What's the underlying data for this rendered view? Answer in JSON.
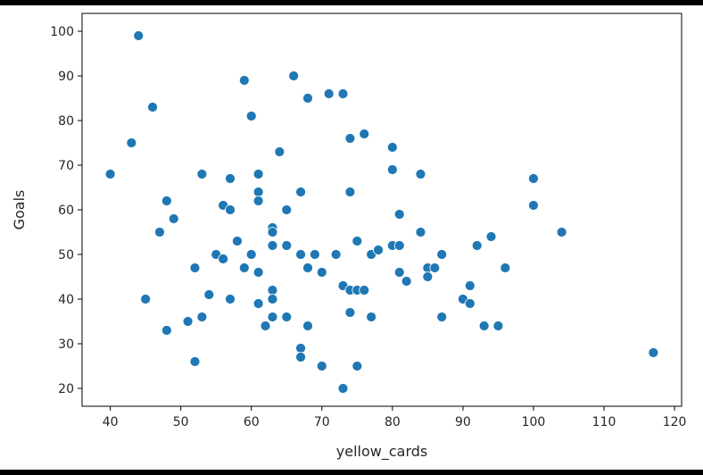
{
  "chart_data": {
    "type": "scatter",
    "xlabel": "yellow_cards",
    "ylabel": "Goals",
    "xlim": [
      36,
      121
    ],
    "ylim": [
      16,
      104
    ],
    "xticks": [
      40,
      50,
      60,
      70,
      80,
      90,
      100,
      110,
      120
    ],
    "yticks": [
      20,
      30,
      40,
      50,
      60,
      70,
      80,
      90,
      100
    ],
    "grid": false,
    "marker_color": "#1f77b4",
    "points": [
      {
        "x": 40,
        "y": 68
      },
      {
        "x": 43,
        "y": 75
      },
      {
        "x": 44,
        "y": 99
      },
      {
        "x": 45,
        "y": 40
      },
      {
        "x": 46,
        "y": 83
      },
      {
        "x": 47,
        "y": 55
      },
      {
        "x": 48,
        "y": 62
      },
      {
        "x": 48,
        "y": 33
      },
      {
        "x": 49,
        "y": 58
      },
      {
        "x": 51,
        "y": 35
      },
      {
        "x": 52,
        "y": 47
      },
      {
        "x": 52,
        "y": 26
      },
      {
        "x": 53,
        "y": 68
      },
      {
        "x": 53,
        "y": 36
      },
      {
        "x": 54,
        "y": 41
      },
      {
        "x": 55,
        "y": 50
      },
      {
        "x": 56,
        "y": 61
      },
      {
        "x": 56,
        "y": 49
      },
      {
        "x": 57,
        "y": 67
      },
      {
        "x": 57,
        "y": 60
      },
      {
        "x": 57,
        "y": 40
      },
      {
        "x": 58,
        "y": 53
      },
      {
        "x": 59,
        "y": 89
      },
      {
        "x": 59,
        "y": 47
      },
      {
        "x": 60,
        "y": 81
      },
      {
        "x": 60,
        "y": 50
      },
      {
        "x": 61,
        "y": 68
      },
      {
        "x": 61,
        "y": 64
      },
      {
        "x": 61,
        "y": 62
      },
      {
        "x": 61,
        "y": 46
      },
      {
        "x": 61,
        "y": 39
      },
      {
        "x": 62,
        "y": 34
      },
      {
        "x": 63,
        "y": 56
      },
      {
        "x": 63,
        "y": 55
      },
      {
        "x": 63,
        "y": 52
      },
      {
        "x": 63,
        "y": 42
      },
      {
        "x": 63,
        "y": 40
      },
      {
        "x": 63,
        "y": 36
      },
      {
        "x": 64,
        "y": 73
      },
      {
        "x": 65,
        "y": 60
      },
      {
        "x": 65,
        "y": 52
      },
      {
        "x": 65,
        "y": 36
      },
      {
        "x": 66,
        "y": 90
      },
      {
        "x": 67,
        "y": 64
      },
      {
        "x": 67,
        "y": 50
      },
      {
        "x": 67,
        "y": 29
      },
      {
        "x": 67,
        "y": 27
      },
      {
        "x": 68,
        "y": 85
      },
      {
        "x": 68,
        "y": 47
      },
      {
        "x": 68,
        "y": 34
      },
      {
        "x": 69,
        "y": 50
      },
      {
        "x": 70,
        "y": 46
      },
      {
        "x": 70,
        "y": 25
      },
      {
        "x": 71,
        "y": 86
      },
      {
        "x": 72,
        "y": 50
      },
      {
        "x": 73,
        "y": 86
      },
      {
        "x": 73,
        "y": 43
      },
      {
        "x": 73,
        "y": 20
      },
      {
        "x": 74,
        "y": 76
      },
      {
        "x": 74,
        "y": 64
      },
      {
        "x": 74,
        "y": 42
      },
      {
        "x": 74,
        "y": 37
      },
      {
        "x": 75,
        "y": 53
      },
      {
        "x": 75,
        "y": 42
      },
      {
        "x": 75,
        "y": 25
      },
      {
        "x": 76,
        "y": 77
      },
      {
        "x": 76,
        "y": 42
      },
      {
        "x": 77,
        "y": 50
      },
      {
        "x": 77,
        "y": 36
      },
      {
        "x": 78,
        "y": 51
      },
      {
        "x": 80,
        "y": 74
      },
      {
        "x": 80,
        "y": 69
      },
      {
        "x": 80,
        "y": 52
      },
      {
        "x": 81,
        "y": 59
      },
      {
        "x": 81,
        "y": 52
      },
      {
        "x": 81,
        "y": 46
      },
      {
        "x": 82,
        "y": 44
      },
      {
        "x": 84,
        "y": 68
      },
      {
        "x": 84,
        "y": 55
      },
      {
        "x": 85,
        "y": 47
      },
      {
        "x": 85,
        "y": 45
      },
      {
        "x": 86,
        "y": 47
      },
      {
        "x": 87,
        "y": 50
      },
      {
        "x": 87,
        "y": 36
      },
      {
        "x": 90,
        "y": 40
      },
      {
        "x": 91,
        "y": 43
      },
      {
        "x": 91,
        "y": 39
      },
      {
        "x": 92,
        "y": 52
      },
      {
        "x": 93,
        "y": 34
      },
      {
        "x": 94,
        "y": 54
      },
      {
        "x": 95,
        "y": 34
      },
      {
        "x": 96,
        "y": 47
      },
      {
        "x": 100,
        "y": 67
      },
      {
        "x": 100,
        "y": 61
      },
      {
        "x": 104,
        "y": 55
      },
      {
        "x": 117,
        "y": 28
      }
    ]
  }
}
